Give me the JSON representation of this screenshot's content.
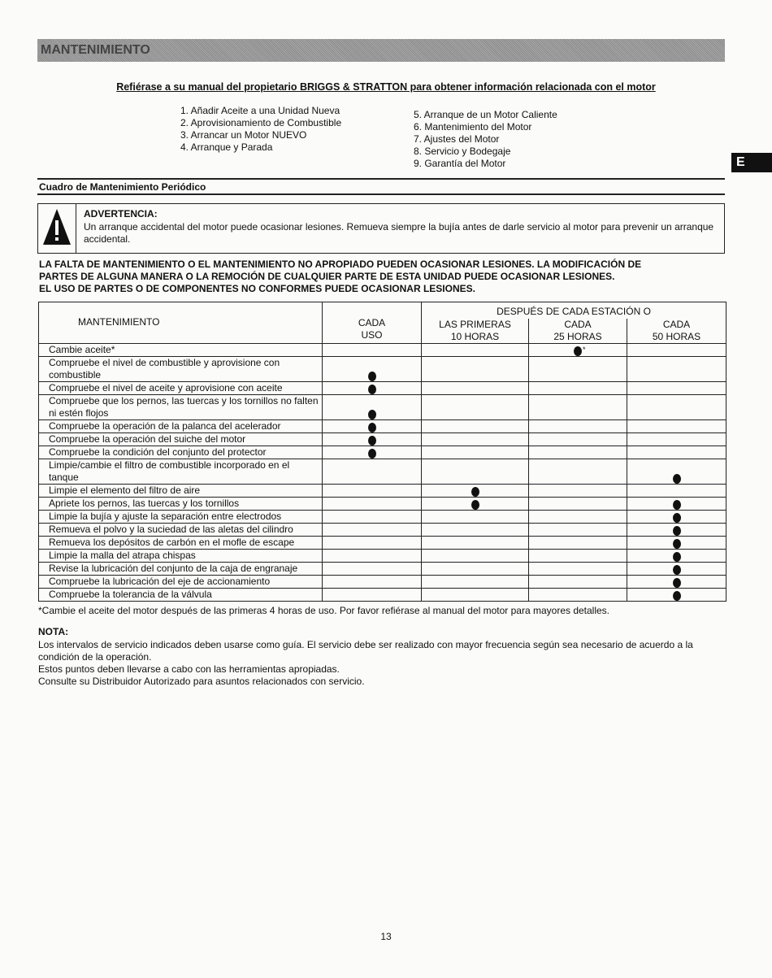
{
  "banner": "MANTENIMIENTO",
  "reference": "Refiérase a su manual del propietario BRIGGS & STRATTON para obtener información relacionada con el motor",
  "toc_left": [
    "1. Añadir Aceite a una Unidad Nueva",
    "2. Aprovisionamiento de Combustible",
    "3. Arrancar un Motor NUEVO",
    "4. Arranque y Parada"
  ],
  "toc_right": [
    "5. Arranque de un Motor Caliente",
    "6. Mantenimiento del Motor",
    "7. Ajustes del Motor",
    "8. Servicio y Bodegaje",
    "9. Garantía del Motor"
  ],
  "side_tab": "E",
  "section_title": "Cuadro de Mantenimiento Periódico",
  "warning": {
    "icon": "warning-triangle-icon",
    "title": "ADVERTENCIA:",
    "text": "Un arranque accidental del motor puede ocasionar lesiones. Remueva siempre la bujía antes de darle servicio al motor para prevenir un arranque accidental."
  },
  "caution_lines": [
    "LA FALTA DE MANTENIMIENTO O EL MANTENIMIENTO NO APROPIADO PUEDEN OCASIONAR LESIONES. LA MODIFICACIÓN DE",
    "PARTES DE ALGUNA MANERA O LA REMOCIÓN DE CUALQUIER PARTE DE ESTA UNIDAD PUEDE OCASIONAR LESIONES.",
    "EL USO DE PARTES O DE COMPONENTES NO CONFORMES PUEDE OCASIONAR LESIONES."
  ],
  "table": {
    "header_main": "MANTENIMIENTO",
    "header_group": "DESPUÉS DE CADA ESTACIÓN O",
    "columns": [
      "CADA\nUSO",
      "LAS PRIMERAS\n10 HORAS",
      "CADA\n25 HORAS",
      "CADA\n50 HORAS"
    ],
    "rows": [
      {
        "task": "Cambie aceite*",
        "marks": [
          2
        ],
        "asterisk_col": 2
      },
      {
        "task": "Compruebe el nivel de combustible y aprovisione con combustible",
        "marks": [
          0
        ]
      },
      {
        "task": "Compruebe el nivel de aceite y aprovisione con aceite",
        "marks": [
          0
        ]
      },
      {
        "task": "Compruebe que los pernos, las tuercas y los tornillos no falten ni estén flojos",
        "marks": [
          0
        ]
      },
      {
        "task": "Compruebe la operación de la palanca del acelerador",
        "marks": [
          0
        ]
      },
      {
        "task": "Compruebe la operación del suiche del motor",
        "marks": [
          0
        ]
      },
      {
        "task": "Compruebe la condición del conjunto del protector",
        "marks": [
          0
        ]
      },
      {
        "task": "Limpie/cambie el filtro de combustible incorporado en el tanque",
        "marks": [
          3
        ]
      },
      {
        "task": "Limpie el elemento del filtro de aire",
        "marks": [
          1
        ]
      },
      {
        "task": "Apriete los pernos, las tuercas y los tornillos",
        "marks": [
          1,
          3
        ]
      },
      {
        "task": "Limpie la bujía y ajuste la separación entre electrodos",
        "marks": [
          3
        ]
      },
      {
        "task": "Remueva el polvo y la suciedad de las aletas del cilindro",
        "marks": [
          3
        ]
      },
      {
        "task": "Remueva los depósitos de carbón en el mofle de escape",
        "marks": [
          3
        ]
      },
      {
        "task": "Limpie la malla del atrapa chispas",
        "marks": [
          3
        ]
      },
      {
        "task": "Revise la lubricación del conjunto de la caja de engranaje",
        "marks": [
          3
        ]
      },
      {
        "task": "Compruebe la lubricación del eje de accionamiento",
        "marks": [
          3
        ]
      },
      {
        "task": "Compruebe la tolerancia de la válvula",
        "marks": [
          3
        ]
      }
    ]
  },
  "footnote": "*Cambie el aceite del motor después de las primeras 4 horas de uso. Por favor refiérase al manual del motor para mayores detalles.",
  "note": {
    "title": "NOTA:",
    "lines": [
      "Los intervalos de servicio indicados deben usarse como guía. El servicio debe ser realizado con mayor frecuencia según sea necesario de acuerdo a la condición de la operación.",
      "Estos puntos deben llevarse a cabo con las herramientas apropiadas.",
      "Consulte su Distribuidor Autorizado para asuntos relacionados con servicio."
    ]
  },
  "page_number": "13"
}
